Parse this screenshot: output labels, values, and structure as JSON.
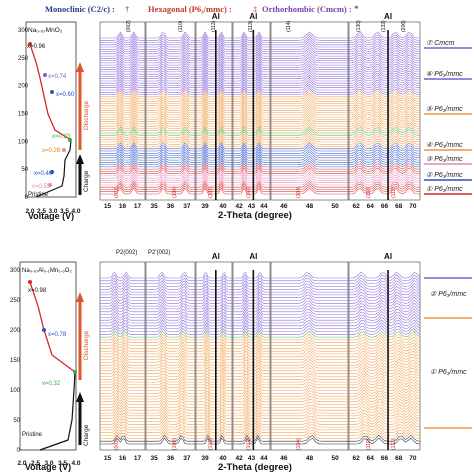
{
  "header": {
    "monoclinic": "Monoclinic (C2/c) :",
    "monoclinic_sym": "†",
    "hexagonal": "Hexagonal (P6₃/mmc) :",
    "hexagonal_sym": "‡",
    "orthorhombic": "Orthorhombic (Cmcm) :",
    "orthorhombic_sym": "*"
  },
  "top": {
    "sample": "Na₀.₆₇MnO₂",
    "y_ticks": [
      "300",
      "250",
      "200",
      "150",
      "100",
      "50",
      "0"
    ],
    "x_ticks": [
      "2.0",
      "2.5",
      "3.0",
      "3.5",
      "4.0"
    ],
    "xlabel": "Voltage (V)",
    "labels": {
      "x096": "x=0.96",
      "x074": "x=0.74",
      "x060": "x=0.60",
      "x023": "x=0.23",
      "x028": "x=0.28",
      "x046": "x=0.46",
      "x055": "x=0.55",
      "pristine": "Pristine",
      "discharge": "Discharge",
      "charge": "Charge"
    },
    "panels": [
      {
        "ticks": [
          "15",
          "16",
          "17"
        ]
      },
      {
        "ticks": [
          "35",
          "36",
          "37"
        ]
      },
      {
        "ticks": [
          "39",
          "40"
        ]
      },
      {
        "ticks": [
          "42",
          "43",
          "44"
        ]
      },
      {
        "ticks": [
          "46",
          "48",
          "50"
        ]
      },
      {
        "ticks": [
          "62",
          "64",
          "66",
          "68",
          "70"
        ]
      }
    ],
    "two_theta": "2-Theta (degree)",
    "al": "Al",
    "phases": [
      "⑦ Cmcm",
      "⑥ P6₃/mmc",
      "⑤ P6₃/mmc",
      "④ P6₃/mmc",
      "③ P6₃/mmc",
      "② P6₃/mmc",
      "① P6₃/mmc"
    ],
    "peak_tops": [
      "(002)",
      "(110)",
      "(112)",
      "(113)",
      "(114)",
      "(130)",
      "(132)",
      "(206)"
    ],
    "peak_bottoms": [
      "(002)",
      "(100)",
      "(102)",
      "(103)",
      "(104)",
      "(110)",
      "(112)"
    ]
  },
  "bottom": {
    "sample": "Na₀.₆₇Al₀.₁Mn₀.₉O₂",
    "y_ticks": [
      "300",
      "250",
      "200",
      "150",
      "100",
      "50",
      "0"
    ],
    "x_ticks": [
      "2.0",
      "2.5",
      "3.0",
      "3.5",
      "4.0"
    ],
    "xlabel": "Voltage (V)",
    "labels": {
      "x098": "x=0.98",
      "x078": "x=0.78",
      "x032": "x=0.32",
      "pristine": "Pristine",
      "discharge": "Discharge",
      "charge": "Charge"
    },
    "panels": [
      {
        "ticks": [
          "15",
          "16",
          "17"
        ]
      },
      {
        "ticks": [
          "35",
          "36",
          "37"
        ]
      },
      {
        "ticks": [
          "39",
          "40"
        ]
      },
      {
        "ticks": [
          "42",
          "43",
          "44"
        ]
      },
      {
        "ticks": [
          "46",
          "48",
          "50"
        ]
      },
      {
        "ticks": [
          "62",
          "64",
          "66",
          "68",
          "70"
        ]
      }
    ],
    "two_theta": "2-Theta (degree)",
    "al": "Al",
    "p2_label": "P2(002)",
    "p2p_label": "P2'(002)",
    "phases": [
      "② P6₃/mmc",
      "① P6₃/mmc"
    ],
    "peak_bottoms": [
      "(002)",
      "(100)",
      "(102)",
      "(103)",
      "(104)",
      "(110)",
      "(112)"
    ]
  },
  "colors": {
    "red": "#d62a2a",
    "orange": "#f0953a",
    "purple": "#7c5cd6",
    "blue": "#2c4fc8",
    "pink": "#e58ab6",
    "green": "#3aa84a",
    "black": "#111111"
  }
}
